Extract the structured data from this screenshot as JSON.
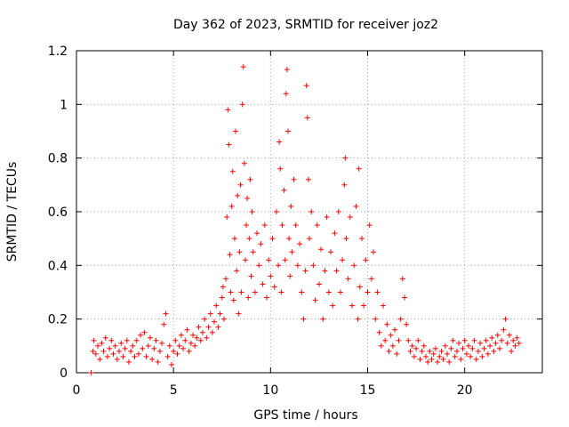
{
  "chart_data": {
    "type": "scatter",
    "title": "Day 362 of 2023, SRMTID for receiver joz2",
    "xlabel": "GPS time / hours",
    "ylabel": "SRMTID / TECUs",
    "xlim": [
      0,
      24
    ],
    "ylim": [
      0,
      1.2
    ],
    "x_ticks": [
      0,
      5,
      10,
      15,
      20
    ],
    "x_tick_labels": [
      "0",
      "5",
      "10",
      "15",
      "20"
    ],
    "y_ticks": [
      0,
      0.2,
      0.4,
      0.6,
      0.8,
      1.0,
      1.2
    ],
    "y_tick_labels": [
      "0",
      "0.2",
      "0.4",
      "0.6",
      "0.8",
      "1",
      "1.2"
    ],
    "grid": true,
    "marker": "+",
    "colors": {
      "series": "#ff0000",
      "axis": "#000000",
      "grid": "#a0a0a0"
    },
    "series": [
      {
        "name": "SRMTID",
        "points": [
          [
            0.75,
            0.0
          ],
          [
            0.85,
            0.08
          ],
          [
            0.9,
            0.12
          ],
          [
            1.0,
            0.07
          ],
          [
            1.1,
            0.1
          ],
          [
            1.2,
            0.05
          ],
          [
            1.3,
            0.11
          ],
          [
            1.4,
            0.08
          ],
          [
            1.5,
            0.13
          ],
          [
            1.6,
            0.06
          ],
          [
            1.7,
            0.09
          ],
          [
            1.8,
            0.12
          ],
          [
            1.9,
            0.07
          ],
          [
            2.0,
            0.1
          ],
          [
            2.1,
            0.05
          ],
          [
            2.2,
            0.08
          ],
          [
            2.3,
            0.11
          ],
          [
            2.4,
            0.06
          ],
          [
            2.5,
            0.09
          ],
          [
            2.6,
            0.12
          ],
          [
            2.7,
            0.04
          ],
          [
            2.8,
            0.08
          ],
          [
            2.9,
            0.1
          ],
          [
            3.0,
            0.06
          ],
          [
            3.1,
            0.12
          ],
          [
            3.2,
            0.07
          ],
          [
            3.3,
            0.14
          ],
          [
            3.4,
            0.09
          ],
          [
            3.5,
            0.15
          ],
          [
            3.6,
            0.06
          ],
          [
            3.7,
            0.1
          ],
          [
            3.8,
            0.13
          ],
          [
            3.9,
            0.05
          ],
          [
            4.0,
            0.09
          ],
          [
            4.1,
            0.12
          ],
          [
            4.2,
            0.04
          ],
          [
            4.3,
            0.08
          ],
          [
            4.4,
            0.11
          ],
          [
            4.5,
            0.18
          ],
          [
            4.6,
            0.22
          ],
          [
            4.7,
            0.06
          ],
          [
            4.8,
            0.1
          ],
          [
            4.9,
            0.03
          ],
          [
            5.0,
            0.08
          ],
          [
            5.1,
            0.12
          ],
          [
            5.2,
            0.07
          ],
          [
            5.3,
            0.1
          ],
          [
            5.4,
            0.14
          ],
          [
            5.5,
            0.09
          ],
          [
            5.6,
            0.12
          ],
          [
            5.7,
            0.16
          ],
          [
            5.8,
            0.08
          ],
          [
            5.9,
            0.11
          ],
          [
            6.0,
            0.14
          ],
          [
            6.1,
            0.1
          ],
          [
            6.2,
            0.13
          ],
          [
            6.3,
            0.17
          ],
          [
            6.4,
            0.12
          ],
          [
            6.5,
            0.15
          ],
          [
            6.6,
            0.2
          ],
          [
            6.7,
            0.13
          ],
          [
            6.8,
            0.17
          ],
          [
            6.9,
            0.22
          ],
          [
            7.0,
            0.15
          ],
          [
            7.1,
            0.19
          ],
          [
            7.2,
            0.25
          ],
          [
            7.3,
            0.17
          ],
          [
            7.4,
            0.22
          ],
          [
            7.5,
            0.28
          ],
          [
            7.55,
            0.32
          ],
          [
            7.6,
            0.2
          ],
          [
            7.7,
            0.35
          ],
          [
            7.75,
            0.58
          ],
          [
            7.8,
            0.98
          ],
          [
            7.85,
            0.85
          ],
          [
            7.9,
            0.44
          ],
          [
            7.95,
            0.3
          ],
          [
            8.0,
            0.62
          ],
          [
            8.05,
            0.75
          ],
          [
            8.1,
            0.27
          ],
          [
            8.15,
            0.5
          ],
          [
            8.2,
            0.9
          ],
          [
            8.25,
            0.38
          ],
          [
            8.3,
            0.66
          ],
          [
            8.35,
            0.22
          ],
          [
            8.4,
            0.45
          ],
          [
            8.45,
            0.7
          ],
          [
            8.5,
            0.3
          ],
          [
            8.55,
            1.0
          ],
          [
            8.6,
            1.14
          ],
          [
            8.65,
            0.78
          ],
          [
            8.7,
            0.42
          ],
          [
            8.75,
            0.55
          ],
          [
            8.8,
            0.65
          ],
          [
            8.85,
            0.28
          ],
          [
            8.9,
            0.5
          ],
          [
            8.95,
            0.72
          ],
          [
            9.0,
            0.36
          ],
          [
            9.05,
            0.6
          ],
          [
            9.1,
            0.45
          ],
          [
            9.2,
            0.3
          ],
          [
            9.3,
            0.52
          ],
          [
            9.4,
            0.4
          ],
          [
            9.5,
            0.48
          ],
          [
            9.6,
            0.33
          ],
          [
            9.7,
            0.55
          ],
          [
            9.8,
            0.28
          ],
          [
            9.9,
            0.42
          ],
          [
            10.0,
            0.36
          ],
          [
            10.1,
            0.5
          ],
          [
            10.2,
            0.32
          ],
          [
            10.3,
            0.6
          ],
          [
            10.4,
            0.4
          ],
          [
            10.45,
            0.86
          ],
          [
            10.5,
            0.76
          ],
          [
            10.55,
            0.3
          ],
          [
            10.6,
            0.55
          ],
          [
            10.7,
            0.68
          ],
          [
            10.75,
            0.42
          ],
          [
            10.8,
            1.04
          ],
          [
            10.85,
            1.13
          ],
          [
            10.9,
            0.9
          ],
          [
            10.95,
            0.5
          ],
          [
            11.0,
            0.36
          ],
          [
            11.05,
            0.62
          ],
          [
            11.1,
            0.45
          ],
          [
            11.2,
            0.72
          ],
          [
            11.3,
            0.55
          ],
          [
            11.4,
            0.4
          ],
          [
            11.5,
            0.48
          ],
          [
            11.6,
            0.3
          ],
          [
            11.7,
            0.2
          ],
          [
            11.8,
            0.38
          ],
          [
            11.85,
            1.07
          ],
          [
            11.9,
            0.95
          ],
          [
            11.95,
            0.72
          ],
          [
            12.0,
            0.5
          ],
          [
            12.1,
            0.6
          ],
          [
            12.2,
            0.4
          ],
          [
            12.3,
            0.27
          ],
          [
            12.4,
            0.55
          ],
          [
            12.5,
            0.33
          ],
          [
            12.6,
            0.46
          ],
          [
            12.7,
            0.2
          ],
          [
            12.8,
            0.38
          ],
          [
            12.9,
            0.58
          ],
          [
            13.0,
            0.3
          ],
          [
            13.1,
            0.45
          ],
          [
            13.2,
            0.25
          ],
          [
            13.3,
            0.52
          ],
          [
            13.4,
            0.38
          ],
          [
            13.5,
            0.6
          ],
          [
            13.6,
            0.3
          ],
          [
            13.7,
            0.42
          ],
          [
            13.8,
            0.7
          ],
          [
            13.85,
            0.8
          ],
          [
            13.9,
            0.5
          ],
          [
            14.0,
            0.35
          ],
          [
            14.1,
            0.58
          ],
          [
            14.2,
            0.25
          ],
          [
            14.3,
            0.4
          ],
          [
            14.4,
            0.62
          ],
          [
            14.5,
            0.2
          ],
          [
            14.55,
            0.76
          ],
          [
            14.6,
            0.32
          ],
          [
            14.7,
            0.5
          ],
          [
            14.8,
            0.25
          ],
          [
            14.9,
            0.42
          ],
          [
            15.0,
            0.3
          ],
          [
            15.1,
            0.55
          ],
          [
            15.2,
            0.35
          ],
          [
            15.3,
            0.45
          ],
          [
            15.4,
            0.2
          ],
          [
            15.5,
            0.3
          ],
          [
            15.6,
            0.15
          ],
          [
            15.7,
            0.1
          ],
          [
            15.8,
            0.25
          ],
          [
            15.9,
            0.12
          ],
          [
            16.0,
            0.18
          ],
          [
            16.1,
            0.08
          ],
          [
            16.2,
            0.14
          ],
          [
            16.3,
            0.1
          ],
          [
            16.4,
            0.16
          ],
          [
            16.5,
            0.07
          ],
          [
            16.6,
            0.12
          ],
          [
            16.7,
            0.2
          ],
          [
            16.8,
            0.35
          ],
          [
            16.9,
            0.28
          ],
          [
            17.0,
            0.18
          ],
          [
            17.1,
            0.12
          ],
          [
            17.2,
            0.08
          ],
          [
            17.3,
            0.1
          ],
          [
            17.4,
            0.06
          ],
          [
            17.5,
            0.09
          ],
          [
            17.6,
            0.12
          ],
          [
            17.7,
            0.05
          ],
          [
            17.8,
            0.08
          ],
          [
            17.9,
            0.1
          ],
          [
            18.0,
            0.06
          ],
          [
            18.1,
            0.04
          ],
          [
            18.2,
            0.08
          ],
          [
            18.3,
            0.05
          ],
          [
            18.4,
            0.07
          ],
          [
            18.5,
            0.09
          ],
          [
            18.6,
            0.04
          ],
          [
            18.7,
            0.06
          ],
          [
            18.8,
            0.08
          ],
          [
            18.9,
            0.05
          ],
          [
            19.0,
            0.1
          ],
          [
            19.1,
            0.07
          ],
          [
            19.2,
            0.04
          ],
          [
            19.3,
            0.09
          ],
          [
            19.4,
            0.12
          ],
          [
            19.5,
            0.06
          ],
          [
            19.6,
            0.08
          ],
          [
            19.7,
            0.11
          ],
          [
            19.8,
            0.05
          ],
          [
            19.9,
            0.09
          ],
          [
            20.0,
            0.12
          ],
          [
            20.1,
            0.07
          ],
          [
            20.2,
            0.1
          ],
          [
            20.3,
            0.06
          ],
          [
            20.4,
            0.09
          ],
          [
            20.5,
            0.12
          ],
          [
            20.6,
            0.05
          ],
          [
            20.7,
            0.08
          ],
          [
            20.8,
            0.11
          ],
          [
            20.9,
            0.06
          ],
          [
            21.0,
            0.09
          ],
          [
            21.1,
            0.12
          ],
          [
            21.2,
            0.07
          ],
          [
            21.3,
            0.1
          ],
          [
            21.4,
            0.13
          ],
          [
            21.5,
            0.08
          ],
          [
            21.6,
            0.11
          ],
          [
            21.7,
            0.14
          ],
          [
            21.8,
            0.09
          ],
          [
            21.9,
            0.12
          ],
          [
            22.0,
            0.16
          ],
          [
            22.1,
            0.2
          ],
          [
            22.2,
            0.11
          ],
          [
            22.3,
            0.14
          ],
          [
            22.4,
            0.08
          ],
          [
            22.5,
            0.12
          ],
          [
            22.6,
            0.1
          ],
          [
            22.7,
            0.13
          ],
          [
            22.8,
            0.11
          ]
        ]
      }
    ]
  }
}
